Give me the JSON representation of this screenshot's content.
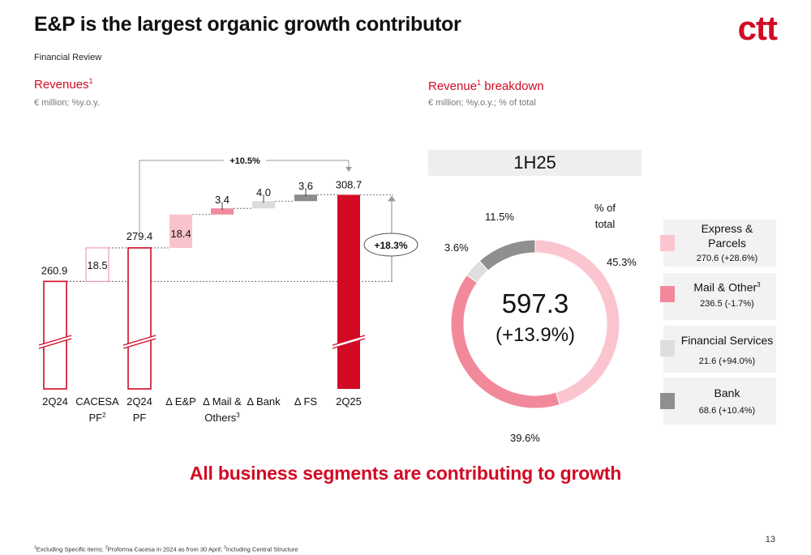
{
  "header": {
    "title": "E&P is the largest organic growth contributor",
    "subtitle": "Financial Review",
    "logo": "ctt"
  },
  "left_section": {
    "title": "Revenues",
    "title_sup": "1",
    "subtitle": "€ million; %y.o.y."
  },
  "right_section": {
    "title": "Revenue",
    "title_sup": "1",
    "title_rest": " breakdown",
    "subtitle": "€ million; %y.o.y.; % of total"
  },
  "chart_data": [
    {
      "type": "bar",
      "subtype": "waterfall",
      "categories": [
        {
          "line1": "2Q24",
          "line2": ""
        },
        {
          "line1": "CACESA",
          "line2": "PF",
          "sup": "2"
        },
        {
          "line1": "2Q24",
          "line2": "PF"
        },
        {
          "line1": "Δ E&P",
          "line2": ""
        },
        {
          "line1": "Δ Mail &",
          "line2": "Others",
          "sup": "3"
        },
        {
          "line1": "Δ Bank",
          "line2": ""
        },
        {
          "line1": "Δ FS",
          "line2": ""
        },
        {
          "line1": "2Q25",
          "line2": ""
        }
      ],
      "bars": [
        {
          "kind": "total",
          "base": 0,
          "value": 260.9,
          "label": "260.9",
          "style": "outline-red",
          "broken_axis": true
        },
        {
          "kind": "delta",
          "base": 260.9,
          "value": 18.5,
          "label": "18.5",
          "style": "outline-pink"
        },
        {
          "kind": "total",
          "base": 0,
          "value": 279.4,
          "label": "279.4",
          "style": "outline-red",
          "broken_axis": true
        },
        {
          "kind": "delta",
          "base": 279.4,
          "value": 18.4,
          "label": "18.4",
          "style": "fill-lightpink"
        },
        {
          "kind": "delta",
          "base": 297.8,
          "value": 3.4,
          "label": "3.4",
          "style": "fill-pink"
        },
        {
          "kind": "delta",
          "base": 301.2,
          "value": 4.0,
          "label": "4.0",
          "style": "fill-lightgray"
        },
        {
          "kind": "delta",
          "base": 305.2,
          "value": 3.6,
          "label": "3.6",
          "style": "fill-gray"
        },
        {
          "kind": "total",
          "base": 0,
          "value": 308.7,
          "label": "308.7",
          "style": "fill-red",
          "broken_axis": true
        }
      ],
      "annotations": {
        "organic_growth": "+10.5%",
        "total_growth": "+18.3%"
      },
      "colors": {
        "red": "#d20a24",
        "pink": "#f08a9c",
        "lightpink": "#f9c3cc",
        "lightgray": "#dcdcdc",
        "gray": "#8c8c8c"
      }
    },
    {
      "type": "pie",
      "subtype": "donut",
      "period": "1H25",
      "total": "597.3",
      "total_growth": "(+13.9%)",
      "header": [
        "% of",
        "total"
      ],
      "slices": [
        {
          "name": "Express & Parcels",
          "value": 270.6,
          "growth": "(+28.6%)",
          "pct": 45.3,
          "pct_label": "45.3%",
          "color": "#fbc5cf"
        },
        {
          "name": "Mail & Other",
          "name_sup": "3",
          "value": 236.5,
          "growth": "(-1.7%)",
          "pct": 39.6,
          "pct_label": "39.6%",
          "color": "#f2899b"
        },
        {
          "name": "Financial Services",
          "value": 21.6,
          "growth": "(+94.0%)",
          "pct": 3.6,
          "pct_label": "3.6%",
          "color": "#dedede"
        },
        {
          "name": "Bank",
          "value": 68.6,
          "growth": "(+10.4%)",
          "pct": 11.5,
          "pct_label": "11.5%",
          "color": "#8f8f8f"
        }
      ]
    }
  ],
  "legend": [
    {
      "name": "Express &",
      "name2": "Parcels",
      "value_text": "270.6 (+28.6%)"
    },
    {
      "name": "Mail & Other",
      "sup": "3",
      "value_text": "236.5 (-1.7%)"
    },
    {
      "name": "Financial Services",
      "value_text": "21.6 (+94.0%)"
    },
    {
      "name": "Bank",
      "value_text": "68.6 (+10.4%)"
    }
  ],
  "headline": "All business segments are contributing to growth",
  "footnote": {
    "n1": "1",
    "t1": "Excluding Specific items; ",
    "n2": "2",
    "t2": "Proforma Cacesa in 2024 as from 30 April; ",
    "n3": "3",
    "t3": "Including Central Structure"
  },
  "page_number": "13"
}
